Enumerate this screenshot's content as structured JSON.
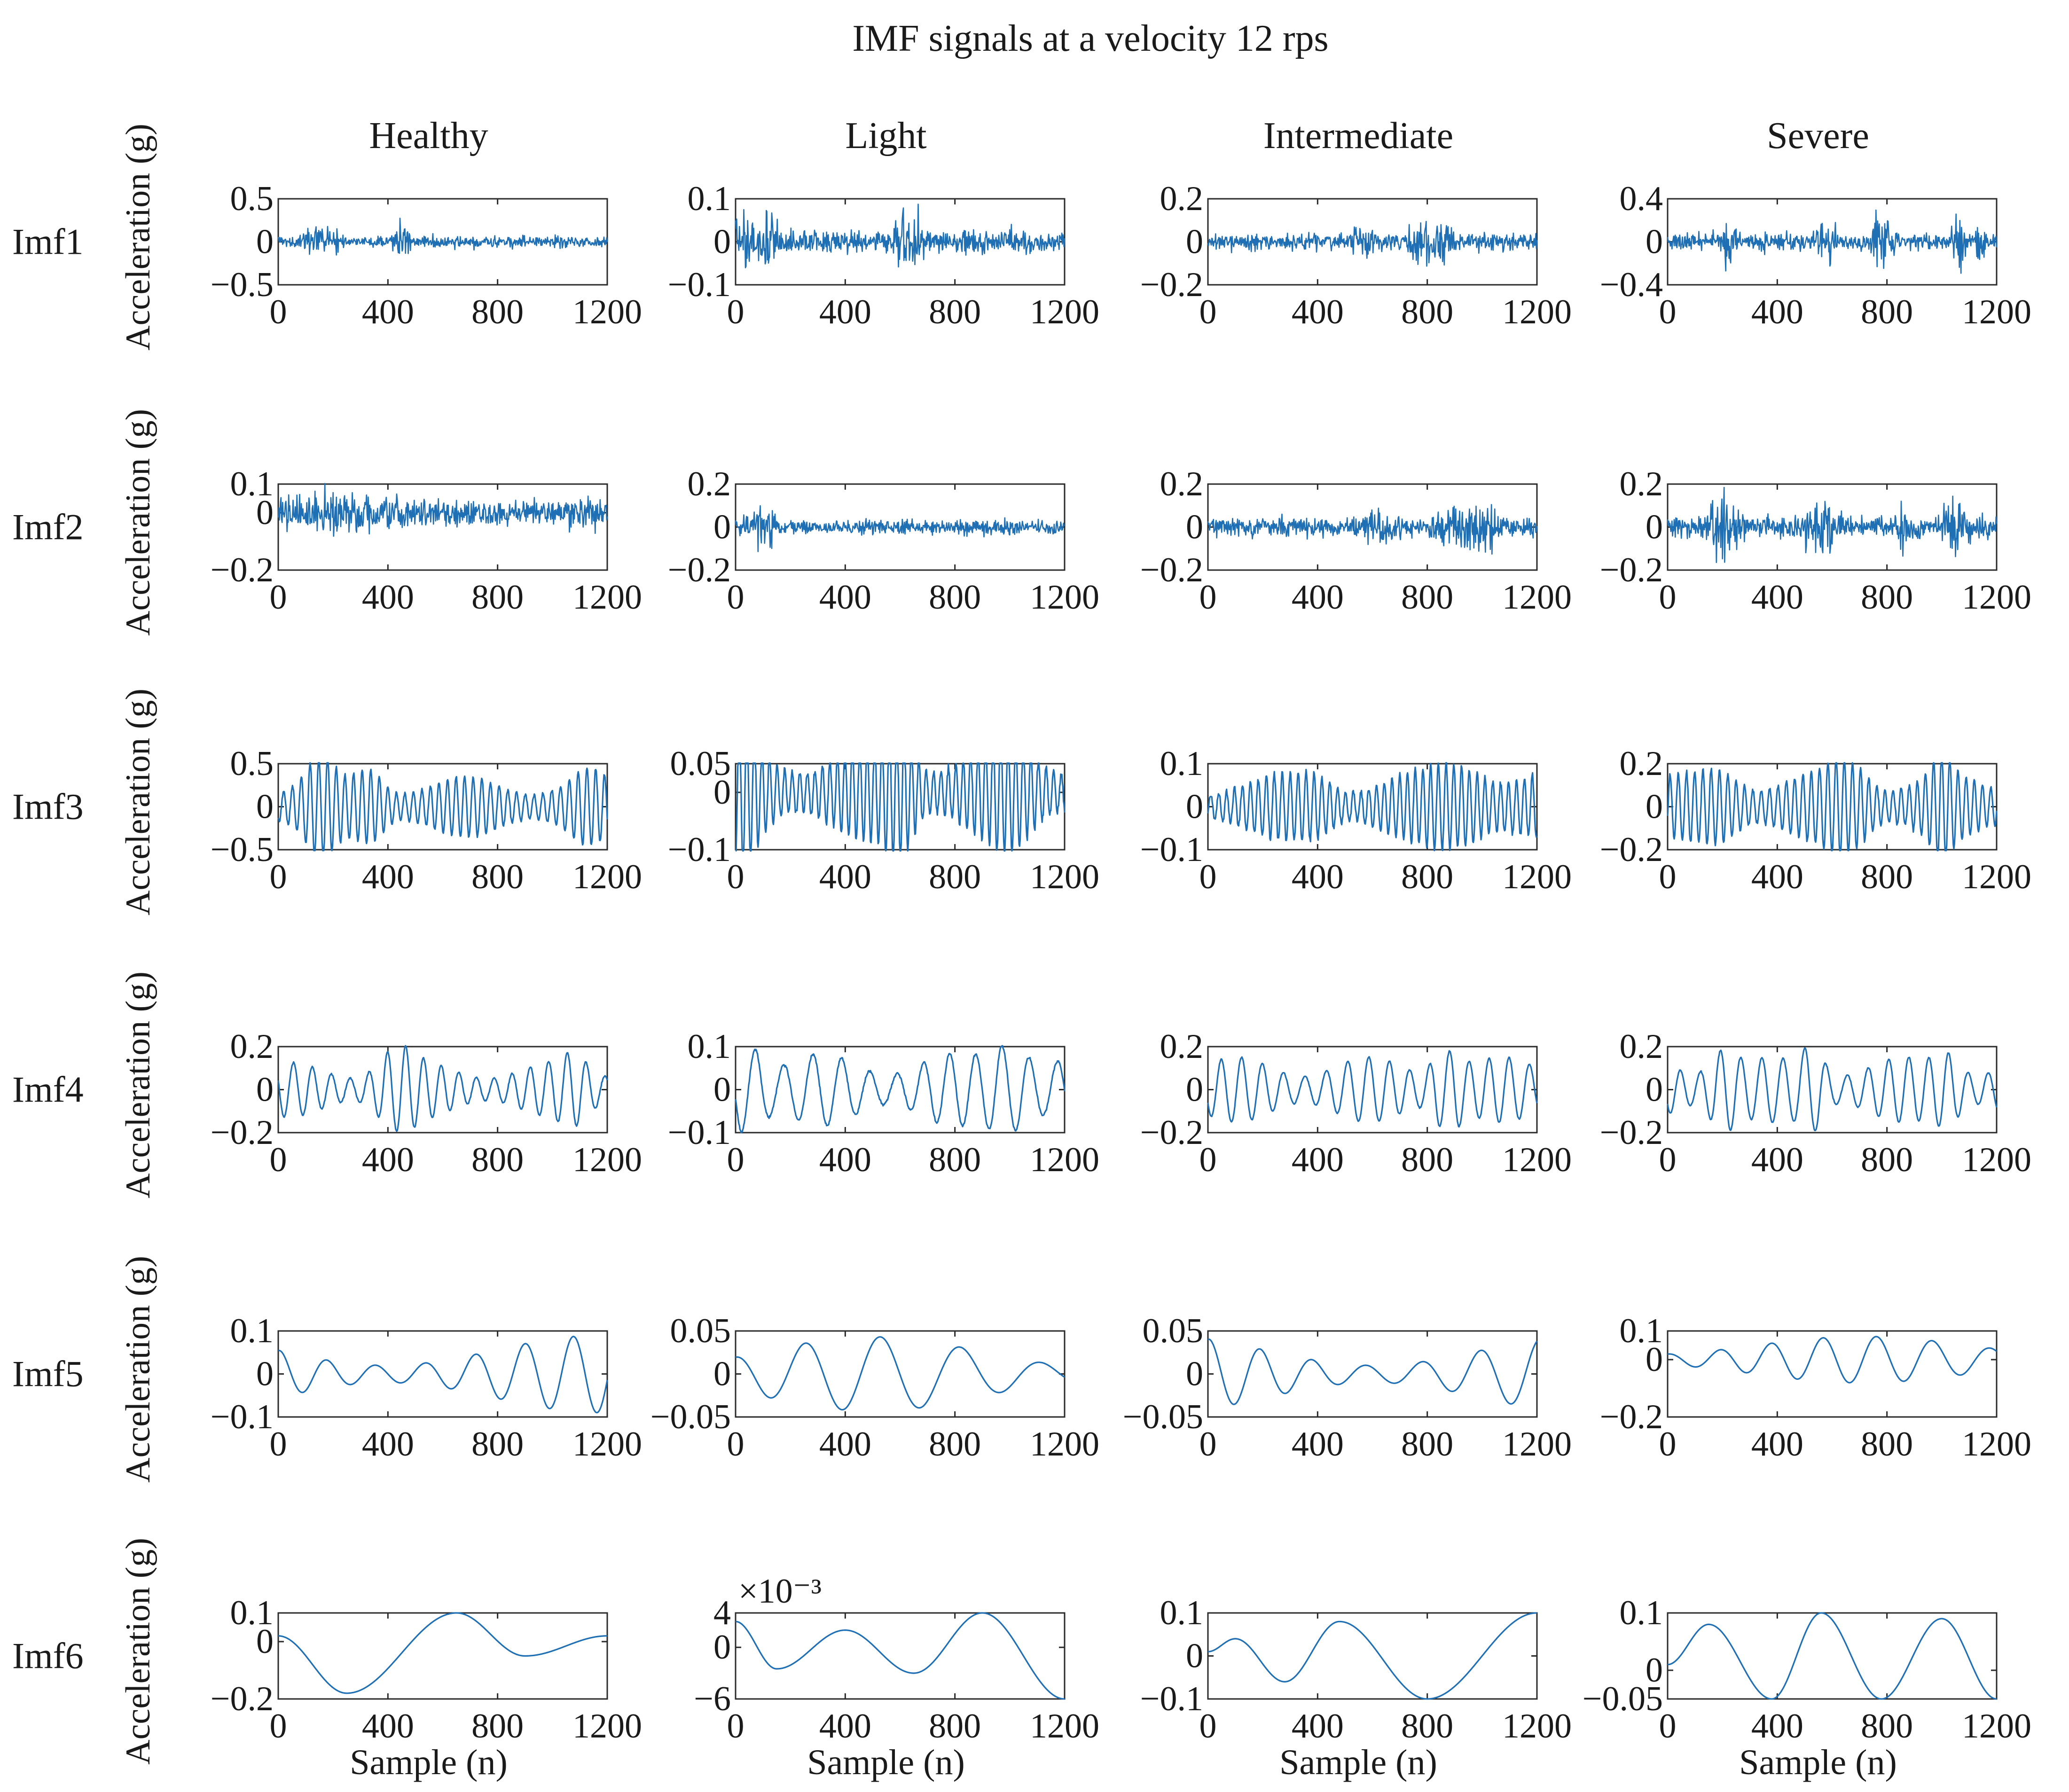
{
  "title": "IMF signals at a velocity 12 rps",
  "colors": {
    "signal": "#1f6fb5",
    "axis": "#2a2a2a",
    "text": "#1a1a1a"
  },
  "chart_data": {
    "type": "line",
    "layout": "grid-6x4",
    "title": "IMF signals at a velocity 12 rps",
    "x_axis": {
      "label": "Sample (n)",
      "range": [
        0,
        1200
      ],
      "ticks": [
        "0",
        "400",
        "800",
        "1200"
      ]
    },
    "y_axis_label": "Acceleration (g)",
    "columns": [
      "Healthy",
      "Light",
      "Intermediate",
      "Severe"
    ],
    "rows": [
      "Imf1",
      "Imf2",
      "Imf3",
      "Imf4",
      "Imf5",
      "Imf6"
    ],
    "panels": [
      {
        "row": 0,
        "col": 0,
        "ylim": [
          -0.5,
          0.5
        ],
        "yticks": [
          "0.5",
          "0",
          "−0.5"
        ],
        "kind": "impulsive",
        "amp": 0.28,
        "noise": 0.06,
        "bursts": [
          [
            130,
            0.9,
            40
          ],
          [
            450,
            1.0,
            30
          ],
          [
            200,
            0.4,
            30
          ]
        ],
        "seed": 11
      },
      {
        "row": 0,
        "col": 1,
        "ylim": [
          -0.1,
          0.1
        ],
        "yticks": [
          "0.1",
          "0",
          "−0.1"
        ],
        "kind": "impulsive",
        "amp": 0.08,
        "noise": 0.03,
        "bursts": [
          [
            40,
            1.0,
            60
          ],
          [
            130,
            1.0,
            20
          ],
          [
            600,
            1.0,
            30
          ],
          [
            660,
            0.8,
            40
          ]
        ],
        "seed": 12
      },
      {
        "row": 0,
        "col": 2,
        "ylim": [
          -0.2,
          0.2
        ],
        "yticks": [
          "0.2",
          "0",
          "−0.2"
        ],
        "kind": "impulsive",
        "amp": 0.16,
        "noise": 0.035,
        "bursts": [
          [
            780,
            0.8,
            40
          ],
          [
            860,
            1.0,
            30
          ],
          [
            560,
            0.5,
            40
          ]
        ],
        "seed": 13
      },
      {
        "row": 0,
        "col": 3,
        "ylim": [
          -0.4,
          0.4
        ],
        "yticks": [
          "0.4",
          "0",
          "−0.4"
        ],
        "kind": "impulsive",
        "amp": 0.36,
        "noise": 0.06,
        "bursts": [
          [
            220,
            0.6,
            30
          ],
          [
            580,
            0.7,
            30
          ],
          [
            780,
            1.0,
            30
          ],
          [
            1060,
            1.0,
            20
          ],
          [
            1140,
            1.0,
            15
          ]
        ],
        "seed": 14
      },
      {
        "row": 1,
        "col": 0,
        "ylim": [
          -0.2,
          0.1
        ],
        "yticks": [
          "0.1",
          "0",
          "−0.2"
        ],
        "kind": "noisy",
        "amp": 0.09,
        "noise": 0.045,
        "bursts": [
          [
            150,
            1.0,
            120
          ],
          [
            420,
            0.6,
            150
          ],
          [
            1080,
            0.5,
            100
          ]
        ],
        "seed": 21
      },
      {
        "row": 1,
        "col": 1,
        "ylim": [
          -0.2,
          0.2
        ],
        "yticks": [
          "0.2",
          "0",
          "−0.2"
        ],
        "kind": "noisy",
        "amp": 0.12,
        "noise": 0.02,
        "bursts": [
          [
            110,
            1.2,
            40
          ],
          [
            60,
            0.6,
            30
          ]
        ],
        "seed": 22
      },
      {
        "row": 1,
        "col": 2,
        "ylim": [
          -0.2,
          0.2
        ],
        "yticks": [
          "0.2",
          "0",
          "−0.2"
        ],
        "kind": "noisy",
        "amp": 0.16,
        "noise": 0.025,
        "bursts": [
          [
            990,
            1.0,
            60
          ],
          [
            900,
            0.5,
            60
          ],
          [
            620,
            0.4,
            60
          ]
        ],
        "seed": 23
      },
      {
        "row": 1,
        "col": 3,
        "ylim": [
          -0.2,
          0.2
        ],
        "yticks": [
          "0.2",
          "0",
          "−0.2"
        ],
        "kind": "noisy",
        "amp": 0.18,
        "noise": 0.035,
        "bursts": [
          [
            200,
            1.0,
            50
          ],
          [
            560,
            0.8,
            60
          ],
          [
            1050,
            1.0,
            40
          ],
          [
            860,
            0.6,
            40
          ]
        ],
        "seed": 24
      },
      {
        "row": 2,
        "col": 0,
        "ylim": [
          -0.5,
          0.5
        ],
        "yticks": [
          "0.5",
          "0",
          "−0.5"
        ],
        "kind": "wave",
        "amp": 0.42,
        "cycles": 38,
        "noise": 0.03,
        "bursts": [
          [
            150,
            1.0,
            60
          ],
          [
            340,
            0.7,
            60
          ],
          [
            1120,
            0.4,
            60
          ]
        ],
        "seed": 31
      },
      {
        "row": 2,
        "col": 1,
        "ylim": [
          -0.1,
          0.05
        ],
        "yticks": [
          "0.05",
          "0",
          "−0.1"
        ],
        "kind": "wave",
        "amp": 0.1,
        "cycles": 44,
        "noise": 0.01,
        "bursts": [
          [
            30,
            0.7,
            60
          ],
          [
            600,
            1.0,
            60
          ],
          [
            1000,
            0.4,
            80
          ]
        ],
        "seed": 32
      },
      {
        "row": 2,
        "col": 2,
        "ylim": [
          -0.1,
          0.1
        ],
        "yticks": [
          "0.1",
          "0",
          "−0.1"
        ],
        "kind": "wave",
        "amp": 0.09,
        "cycles": 42,
        "noise": 0.01,
        "bursts": [
          [
            920,
            1.0,
            120
          ],
          [
            400,
            0.4,
            80
          ]
        ],
        "seed": 33
      },
      {
        "row": 2,
        "col": 3,
        "ylim": [
          -0.2,
          0.2
        ],
        "yticks": [
          "0.2",
          "0",
          "−0.2"
        ],
        "kind": "wave",
        "amp": 0.18,
        "cycles": 40,
        "noise": 0.015,
        "bursts": [
          [
            660,
            1.0,
            90
          ],
          [
            200,
            0.6,
            90
          ],
          [
            1000,
            0.8,
            50
          ]
        ],
        "seed": 34
      },
      {
        "row": 3,
        "col": 0,
        "ylim": [
          -0.2,
          0.2
        ],
        "yticks": [
          "0.2",
          "0",
          "−0.2"
        ],
        "kind": "wave",
        "amp": 0.15,
        "cycles": 18,
        "noise": 0.005,
        "bursts": [
          [
            430,
            1.0,
            80
          ],
          [
            1080,
            0.6,
            60
          ]
        ],
        "seed": 41
      },
      {
        "row": 3,
        "col": 1,
        "ylim": [
          -0.1,
          0.1
        ],
        "yticks": [
          "0.1",
          "0",
          "−0.1"
        ],
        "kind": "wave",
        "amp": 0.1,
        "cycles": 12,
        "noise": 0.004,
        "bursts": [
          [
            50,
            1.0,
            70
          ],
          [
            1000,
            1.0,
            90
          ]
        ],
        "seed": 42
      },
      {
        "row": 3,
        "col": 2,
        "ylim": [
          -0.2,
          0.2
        ],
        "yticks": [
          "0.2",
          "0",
          "−0.2"
        ],
        "kind": "wave",
        "amp": 0.18,
        "cycles": 16,
        "noise": 0.004,
        "bursts": [
          [
            870,
            1.2,
            60
          ]
        ],
        "seed": 43
      },
      {
        "row": 3,
        "col": 3,
        "ylim": [
          -0.2,
          0.2
        ],
        "yticks": [
          "0.2",
          "0",
          "−0.2"
        ],
        "kind": "wave",
        "amp": 0.18,
        "cycles": 16,
        "noise": 0.004,
        "bursts": [
          [
            200,
            1.0,
            60
          ],
          [
            530,
            1.0,
            50
          ],
          [
            1020,
            0.7,
            60
          ]
        ],
        "seed": 44
      },
      {
        "row": 4,
        "col": 0,
        "ylim": [
          -0.1,
          0.1
        ],
        "yticks": [
          "0.1",
          "0",
          "−0.1"
        ],
        "kind": "slow",
        "amp": 0.1,
        "cycles": 7,
        "seed": 51
      },
      {
        "row": 4,
        "col": 1,
        "ylim": [
          -0.05,
          0.05
        ],
        "yticks": [
          "0.05",
          "0",
          "−0.05"
        ],
        "kind": "slow",
        "amp": 0.048,
        "cycles": 4.5,
        "seed": 52
      },
      {
        "row": 4,
        "col": 2,
        "ylim": [
          -0.05,
          0.05
        ],
        "yticks": [
          "0.05",
          "0",
          "−0.05"
        ],
        "kind": "slow",
        "amp": 0.05,
        "cycles": 6,
        "seed": 53
      },
      {
        "row": 4,
        "col": 3,
        "ylim": [
          -0.2,
          0.1
        ],
        "yticks": [
          "0.1",
          "0",
          "−0.2"
        ],
        "kind": "slow",
        "amp": 0.09,
        "cycles": 6,
        "seed": 54
      },
      {
        "row": 5,
        "col": 0,
        "ylim": [
          -0.2,
          0.1
        ],
        "yticks": [
          "0.1",
          "0",
          "−0.2"
        ],
        "kind": "curve",
        "x": [
          0,
          250,
          650,
          900,
          1200
        ],
        "y": [
          0.02,
          -0.18,
          0.1,
          -0.05,
          0.02
        ]
      },
      {
        "row": 5,
        "col": 1,
        "ylim": [
          -6,
          4
        ],
        "yticks": [
          "4",
          "0",
          "−6"
        ],
        "yscale": "×10⁻³",
        "kind": "curve",
        "x": [
          0,
          150,
          400,
          650,
          900,
          1200
        ],
        "y": [
          3,
          -2.5,
          2,
          -3,
          4,
          -6
        ]
      },
      {
        "row": 5,
        "col": 2,
        "ylim": [
          -0.1,
          0.1
        ],
        "yticks": [
          "0.1",
          "0",
          "−0.1"
        ],
        "kind": "curve",
        "x": [
          0,
          100,
          280,
          480,
          800,
          1200
        ],
        "y": [
          0.01,
          0.04,
          -0.06,
          0.08,
          -0.1,
          0.1
        ]
      },
      {
        "row": 5,
        "col": 3,
        "ylim": [
          -0.05,
          0.1
        ],
        "yticks": [
          "0.1",
          "0",
          "−0.05"
        ],
        "kind": "curve",
        "x": [
          0,
          150,
          380,
          560,
          780,
          1000,
          1200
        ],
        "y": [
          0.01,
          0.08,
          -0.05,
          0.1,
          -0.05,
          0.09,
          -0.05
        ]
      }
    ]
  }
}
